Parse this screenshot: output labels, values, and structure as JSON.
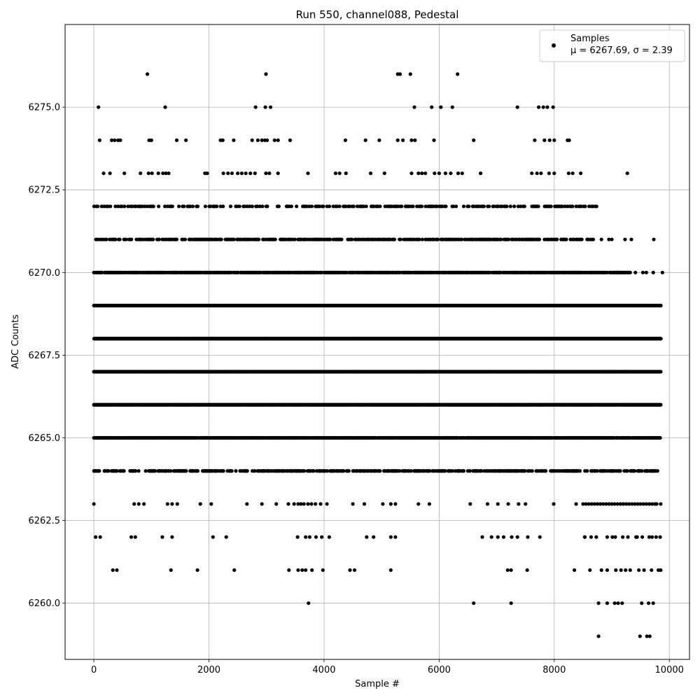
{
  "chart_data": {
    "type": "scatter",
    "title": "Run 550, channel088, Pedestal",
    "xlabel": "Sample #",
    "ylabel": "ADC Counts",
    "xlim": [
      -500,
      10350
    ],
    "ylim": [
      6258.3,
      6277.5
    ],
    "xticks": [
      0,
      2000,
      4000,
      6000,
      8000,
      10000
    ],
    "xtick_labels": [
      "0",
      "2000",
      "4000",
      "6000",
      "8000",
      "10000"
    ],
    "yticks": [
      6260.0,
      6262.5,
      6265.0,
      6267.5,
      6270.0,
      6272.5,
      6275.0
    ],
    "ytick_labels": [
      "6260.0",
      "6262.5",
      "6265.0",
      "6267.5",
      "6270.0",
      "6272.5",
      "6275.0"
    ],
    "grid": true,
    "legend_position": "top-right",
    "marker_color": "#000000",
    "series": [
      {
        "name": "Samples",
        "stats_label": "μ = 6267.69, σ = 2.39",
        "sample_count": 9850,
        "mean": 6267.69,
        "std": 2.39,
        "points": [
          [
            930,
            6276
          ],
          [
            2990,
            6276
          ],
          [
            5280,
            6276
          ],
          [
            5320,
            6276
          ],
          [
            5500,
            6276
          ],
          [
            6320,
            6276
          ],
          [
            80,
            6275
          ],
          [
            1240,
            6275
          ],
          [
            2810,
            6275
          ],
          [
            2980,
            6275
          ],
          [
            3070,
            6275
          ],
          [
            5570,
            6275
          ],
          [
            5870,
            6275
          ],
          [
            6030,
            6275
          ],
          [
            6230,
            6275
          ],
          [
            7360,
            6275
          ],
          [
            7730,
            6275
          ],
          [
            7810,
            6275
          ],
          [
            7880,
            6275
          ],
          [
            7980,
            6275
          ],
          [
            100,
            6274
          ],
          [
            310,
            6274
          ],
          [
            360,
            6274
          ],
          [
            420,
            6274
          ],
          [
            460,
            6274
          ],
          [
            960,
            6274
          ],
          [
            1000,
            6274
          ],
          [
            1440,
            6274
          ],
          [
            1600,
            6274
          ],
          [
            2200,
            6274
          ],
          [
            2240,
            6274
          ],
          [
            2430,
            6274
          ],
          [
            2750,
            6274
          ],
          [
            2850,
            6274
          ],
          [
            2920,
            6274
          ],
          [
            2970,
            6274
          ],
          [
            3010,
            6274
          ],
          [
            3140,
            6274
          ],
          [
            3200,
            6274
          ],
          [
            3410,
            6274
          ],
          [
            4370,
            6274
          ],
          [
            4720,
            6274
          ],
          [
            4960,
            6274
          ],
          [
            5280,
            6274
          ],
          [
            5370,
            6274
          ],
          [
            5520,
            6274
          ],
          [
            5580,
            6274
          ],
          [
            5910,
            6274
          ],
          [
            6600,
            6274
          ],
          [
            7660,
            6274
          ],
          [
            7830,
            6274
          ],
          [
            7920,
            6274
          ],
          [
            8000,
            6274
          ],
          [
            8230,
            6274
          ],
          [
            8260,
            6274
          ],
          [
            170,
            6273
          ],
          [
            280,
            6273
          ],
          [
            530,
            6273
          ],
          [
            810,
            6273
          ],
          [
            950,
            6273
          ],
          [
            1010,
            6273
          ],
          [
            1120,
            6273
          ],
          [
            1200,
            6273
          ],
          [
            1250,
            6273
          ],
          [
            1300,
            6273
          ],
          [
            1930,
            6273
          ],
          [
            1970,
            6273
          ],
          [
            2250,
            6273
          ],
          [
            2330,
            6273
          ],
          [
            2400,
            6273
          ],
          [
            2500,
            6273
          ],
          [
            2570,
            6273
          ],
          [
            2640,
            6273
          ],
          [
            2720,
            6273
          ],
          [
            2800,
            6273
          ],
          [
            2990,
            6273
          ],
          [
            3050,
            6273
          ],
          [
            3200,
            6273
          ],
          [
            3720,
            6273
          ],
          [
            4200,
            6273
          ],
          [
            4270,
            6273
          ],
          [
            4380,
            6273
          ],
          [
            4810,
            6273
          ],
          [
            5050,
            6273
          ],
          [
            5520,
            6273
          ],
          [
            5640,
            6273
          ],
          [
            5700,
            6273
          ],
          [
            5760,
            6273
          ],
          [
            5920,
            6273
          ],
          [
            6000,
            6273
          ],
          [
            6110,
            6273
          ],
          [
            6200,
            6273
          ],
          [
            6330,
            6273
          ],
          [
            6400,
            6273
          ],
          [
            6720,
            6273
          ],
          [
            7610,
            6273
          ],
          [
            7700,
            6273
          ],
          [
            7770,
            6273
          ],
          [
            7910,
            6273
          ],
          [
            8000,
            6273
          ],
          [
            8250,
            6273
          ],
          [
            8320,
            6273
          ],
          [
            8460,
            6273
          ],
          [
            9270,
            6273
          ],
          [
            3730,
            6260
          ],
          [
            6600,
            6260
          ],
          [
            7250,
            6260
          ],
          [
            8770,
            6260
          ],
          [
            8920,
            6260
          ],
          [
            9050,
            6260
          ],
          [
            9110,
            6260
          ],
          [
            9180,
            6260
          ],
          [
            9520,
            6260
          ],
          [
            9640,
            6260
          ],
          [
            9720,
            6260
          ],
          [
            8770,
            6259
          ],
          [
            9490,
            6259
          ],
          [
            9610,
            6259
          ],
          [
            9660,
            6259
          ],
          [
            330,
            6261
          ],
          [
            400,
            6261
          ],
          [
            1340,
            6261
          ],
          [
            1800,
            6261
          ],
          [
            2440,
            6261
          ],
          [
            3390,
            6261
          ],
          [
            3550,
            6261
          ],
          [
            3620,
            6261
          ],
          [
            3680,
            6261
          ],
          [
            3790,
            6261
          ],
          [
            3980,
            6261
          ],
          [
            4450,
            6261
          ],
          [
            4530,
            6261
          ],
          [
            5160,
            6261
          ],
          [
            7190,
            6261
          ],
          [
            7250,
            6261
          ],
          [
            7530,
            6261
          ],
          [
            8350,
            6261
          ],
          [
            8620,
            6261
          ],
          [
            8820,
            6261
          ],
          [
            8920,
            6261
          ],
          [
            9070,
            6261
          ],
          [
            9160,
            6261
          ],
          [
            9240,
            6261
          ],
          [
            9320,
            6261
          ],
          [
            9470,
            6261
          ],
          [
            9560,
            6261
          ],
          [
            9690,
            6261
          ],
          [
            9810,
            6261
          ],
          [
            9850,
            6261
          ],
          [
            30,
            6262
          ],
          [
            110,
            6262
          ],
          [
            650,
            6262
          ],
          [
            720,
            6262
          ],
          [
            1190,
            6262
          ],
          [
            1360,
            6262
          ],
          [
            2070,
            6262
          ],
          [
            2300,
            6262
          ],
          [
            3540,
            6262
          ],
          [
            3680,
            6262
          ],
          [
            3750,
            6262
          ],
          [
            3860,
            6262
          ],
          [
            3960,
            6262
          ],
          [
            4090,
            6262
          ],
          [
            4740,
            6262
          ],
          [
            4860,
            6262
          ],
          [
            5160,
            6262
          ],
          [
            5240,
            6262
          ],
          [
            6750,
            6262
          ],
          [
            6910,
            6262
          ],
          [
            7020,
            6262
          ],
          [
            7120,
            6262
          ],
          [
            7260,
            6262
          ],
          [
            7360,
            6262
          ],
          [
            7540,
            6262
          ],
          [
            7750,
            6262
          ],
          [
            8530,
            6262
          ],
          [
            8640,
            6262
          ],
          [
            8730,
            6262
          ],
          [
            8920,
            6262
          ],
          [
            9060,
            6262
          ],
          [
            9190,
            6262
          ],
          [
            9280,
            6262
          ],
          [
            9420,
            6262
          ],
          [
            9530,
            6262
          ],
          [
            9650,
            6262
          ],
          [
            9770,
            6262
          ],
          [
            9840,
            6262
          ],
          [
            0,
            6263
          ],
          [
            700,
            6263
          ],
          [
            780,
            6263
          ],
          [
            870,
            6263
          ],
          [
            1280,
            6263
          ],
          [
            1360,
            6263
          ],
          [
            1450,
            6263
          ],
          [
            1850,
            6263
          ],
          [
            2040,
            6263
          ],
          [
            2660,
            6263
          ],
          [
            2920,
            6263
          ],
          [
            3170,
            6263
          ],
          [
            3380,
            6263
          ],
          [
            3550,
            6263
          ],
          [
            3720,
            6263
          ],
          [
            3940,
            6263
          ],
          [
            4050,
            6263
          ],
          [
            4500,
            6263
          ],
          [
            4700,
            6263
          ],
          [
            5020,
            6263
          ],
          [
            5160,
            6263
          ],
          [
            5240,
            6263
          ],
          [
            5640,
            6263
          ],
          [
            5830,
            6263
          ],
          [
            6540,
            6263
          ],
          [
            6840,
            6263
          ],
          [
            7020,
            6263
          ],
          [
            7200,
            6263
          ],
          [
            7380,
            6263
          ],
          [
            7500,
            6263
          ],
          [
            7990,
            6263
          ],
          [
            8380,
            6263
          ],
          [
            8500,
            6263
          ],
          [
            8600,
            6263
          ],
          [
            8700,
            6263
          ],
          [
            8800,
            6263
          ],
          [
            8900,
            6263
          ],
          [
            9000,
            6263
          ],
          [
            9100,
            6263
          ],
          [
            9200,
            6263
          ],
          [
            9300,
            6263
          ],
          [
            9400,
            6263
          ],
          [
            9500,
            6263
          ],
          [
            9600,
            6263
          ],
          [
            9700,
            6263
          ],
          [
            9780,
            6263
          ],
          [
            9850,
            6263
          ],
          [
            8530,
            6262
          ],
          [
            9010,
            6262
          ],
          [
            9440,
            6262
          ],
          [
            9700,
            6262
          ],
          [
            3480,
            6263
          ],
          [
            3600,
            6263
          ],
          [
            3650,
            6263
          ],
          [
            3780,
            6263
          ],
          [
            3850,
            6263
          ],
          [
            8550,
            6263
          ],
          [
            8650,
            6263
          ],
          [
            8750,
            6263
          ],
          [
            8850,
            6263
          ],
          [
            8950,
            6263
          ],
          [
            9050,
            6263
          ],
          [
            9150,
            6263
          ],
          [
            9250,
            6263
          ],
          [
            9350,
            6263
          ],
          [
            9450,
            6263
          ],
          [
            9550,
            6263
          ],
          [
            9650,
            6263
          ],
          [
            9750,
            6263
          ],
          [
            9730,
            6271
          ],
          [
            9880,
            6270
          ],
          [
            9320,
            6270
          ],
          [
            9410,
            6270
          ],
          [
            9540,
            6270
          ],
          [
            9600,
            6270
          ],
          [
            9720,
            6270
          ],
          [
            8820,
            6271
          ],
          [
            8950,
            6271
          ],
          [
            9000,
            6271
          ],
          [
            9230,
            6271
          ],
          [
            9340,
            6271
          ],
          [
            3600,
            6270
          ],
          [
            3700,
            6270
          ],
          [
            3820,
            6270
          ],
          [
            9040,
            6270
          ],
          [
            9100,
            6270
          ],
          [
            9160,
            6270
          ],
          [
            9230,
            6270
          ]
        ],
        "bands": [
          {
            "y": 6272,
            "x_start": 0,
            "x_end": 8750,
            "step": 22,
            "dropout": 0.45
          },
          {
            "y": 6271,
            "x_start": 0,
            "x_end": 8700,
            "step": 18,
            "dropout": 0.3
          },
          {
            "y": 6270,
            "x_start": 0,
            "x_end": 9300,
            "step": 14,
            "dropout": 0.15
          },
          {
            "y": 6269,
            "x_start": 0,
            "x_end": 9850,
            "step": 10,
            "dropout": 0.0
          },
          {
            "y": 6268,
            "x_start": 0,
            "x_end": 9850,
            "step": 10,
            "dropout": 0.0
          },
          {
            "y": 6267,
            "x_start": 0,
            "x_end": 9850,
            "step": 10,
            "dropout": 0.0
          },
          {
            "y": 6266,
            "x_start": 0,
            "x_end": 9850,
            "step": 10,
            "dropout": 0.0
          },
          {
            "y": 6265,
            "x_start": 0,
            "x_end": 9850,
            "step": 12,
            "dropout": 0.08
          },
          {
            "y": 6264,
            "x_start": 0,
            "x_end": 9850,
            "step": 18,
            "dropout": 0.35
          }
        ]
      }
    ]
  }
}
